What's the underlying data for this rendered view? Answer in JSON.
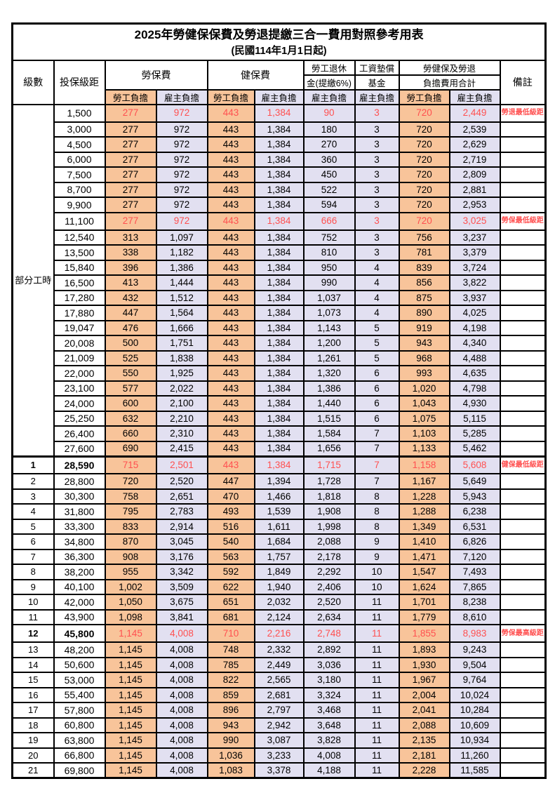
{
  "title": "2025年勞健保保費及勞退提繳三合一費用對照參考用表",
  "subtitle": "(民國114年1月1日起)",
  "part_time_label": "部分工時",
  "header": {
    "level": "級數",
    "bracket": "投保級距",
    "labor_fee": "勞保費",
    "health_fee": "健保費",
    "pension_line1": "勞工退休",
    "pension_line2": "金(提繳6%)",
    "wage_fund_line1": "工資墊償",
    "wage_fund_line2": "基金",
    "total_line1": "勞健保及勞退",
    "total_line2": "負擔費用合計",
    "employee": "勞工負擔",
    "employer": "雇主負擔",
    "note": "備註"
  },
  "colors": {
    "employee_bg": "#F8C49A",
    "employer_bg": "#E2E0F1",
    "highlight_text": "#FF5050",
    "border": "#000000"
  },
  "rows": [
    {
      "level": "",
      "bracket": "1,500",
      "v": [
        "277",
        "972",
        "443",
        "1,384",
        "90",
        "3",
        "720",
        "2,449"
      ],
      "note": "勞退最低級距",
      "hl": true
    },
    {
      "level": "",
      "bracket": "3,000",
      "v": [
        "277",
        "972",
        "443",
        "1,384",
        "180",
        "3",
        "720",
        "2,539"
      ]
    },
    {
      "level": "",
      "bracket": "4,500",
      "v": [
        "277",
        "972",
        "443",
        "1,384",
        "270",
        "3",
        "720",
        "2,629"
      ]
    },
    {
      "level": "",
      "bracket": "6,000",
      "v": [
        "277",
        "972",
        "443",
        "1,384",
        "360",
        "3",
        "720",
        "2,719"
      ]
    },
    {
      "level": "",
      "bracket": "7,500",
      "v": [
        "277",
        "972",
        "443",
        "1,384",
        "450",
        "3",
        "720",
        "2,809"
      ]
    },
    {
      "level": "",
      "bracket": "8,700",
      "v": [
        "277",
        "972",
        "443",
        "1,384",
        "522",
        "3",
        "720",
        "2,881"
      ]
    },
    {
      "level": "",
      "bracket": "9,900",
      "v": [
        "277",
        "972",
        "443",
        "1,384",
        "594",
        "3",
        "720",
        "2,953"
      ]
    },
    {
      "level": "",
      "bracket": "11,100",
      "v": [
        "277",
        "972",
        "443",
        "1,384",
        "666",
        "3",
        "720",
        "3,025"
      ],
      "note": "勞保最低級距",
      "hl": true
    },
    {
      "level": "",
      "bracket": "12,540",
      "v": [
        "313",
        "1,097",
        "443",
        "1,384",
        "752",
        "3",
        "756",
        "3,237"
      ]
    },
    {
      "level": "",
      "bracket": "13,500",
      "v": [
        "338",
        "1,182",
        "443",
        "1,384",
        "810",
        "3",
        "781",
        "3,379"
      ]
    },
    {
      "level": "",
      "bracket": "15,840",
      "v": [
        "396",
        "1,386",
        "443",
        "1,384",
        "950",
        "4",
        "839",
        "3,724"
      ]
    },
    {
      "level": "",
      "bracket": "16,500",
      "v": [
        "413",
        "1,444",
        "443",
        "1,384",
        "990",
        "4",
        "856",
        "3,822"
      ]
    },
    {
      "level": "",
      "bracket": "17,280",
      "v": [
        "432",
        "1,512",
        "443",
        "1,384",
        "1,037",
        "4",
        "875",
        "3,937"
      ]
    },
    {
      "level": "",
      "bracket": "17,880",
      "v": [
        "447",
        "1,564",
        "443",
        "1,384",
        "1,073",
        "4",
        "890",
        "4,025"
      ]
    },
    {
      "level": "",
      "bracket": "19,047",
      "v": [
        "476",
        "1,666",
        "443",
        "1,384",
        "1,143",
        "5",
        "919",
        "4,198"
      ]
    },
    {
      "level": "",
      "bracket": "20,008",
      "v": [
        "500",
        "1,751",
        "443",
        "1,384",
        "1,200",
        "5",
        "943",
        "4,340"
      ]
    },
    {
      "level": "",
      "bracket": "21,009",
      "v": [
        "525",
        "1,838",
        "443",
        "1,384",
        "1,261",
        "5",
        "968",
        "4,488"
      ]
    },
    {
      "level": "",
      "bracket": "22,000",
      "v": [
        "550",
        "1,925",
        "443",
        "1,384",
        "1,320",
        "6",
        "993",
        "4,635"
      ]
    },
    {
      "level": "",
      "bracket": "23,100",
      "v": [
        "577",
        "2,022",
        "443",
        "1,384",
        "1,386",
        "6",
        "1,020",
        "4,798"
      ]
    },
    {
      "level": "",
      "bracket": "24,000",
      "v": [
        "600",
        "2,100",
        "443",
        "1,384",
        "1,440",
        "6",
        "1,043",
        "4,930"
      ]
    },
    {
      "level": "",
      "bracket": "25,250",
      "v": [
        "632",
        "2,210",
        "443",
        "1,384",
        "1,515",
        "6",
        "1,075",
        "5,115"
      ]
    },
    {
      "level": "",
      "bracket": "26,400",
      "v": [
        "660",
        "2,310",
        "443",
        "1,384",
        "1,584",
        "7",
        "1,103",
        "5,285"
      ]
    },
    {
      "level": "",
      "bracket": "27,600",
      "v": [
        "690",
        "2,415",
        "443",
        "1,384",
        "1,656",
        "7",
        "1,133",
        "5,462"
      ]
    },
    {
      "level": "1",
      "bracket": "28,590",
      "v": [
        "715",
        "2,501",
        "443",
        "1,384",
        "1,715",
        "7",
        "1,158",
        "5,608"
      ],
      "note": "健保最低級距",
      "hl": true,
      "bold": true,
      "sep": true
    },
    {
      "level": "2",
      "bracket": "28,800",
      "v": [
        "720",
        "2,520",
        "447",
        "1,394",
        "1,728",
        "7",
        "1,167",
        "5,649"
      ]
    },
    {
      "level": "3",
      "bracket": "30,300",
      "v": [
        "758",
        "2,651",
        "470",
        "1,466",
        "1,818",
        "8",
        "1,228",
        "5,943"
      ]
    },
    {
      "level": "4",
      "bracket": "31,800",
      "v": [
        "795",
        "2,783",
        "493",
        "1,539",
        "1,908",
        "8",
        "1,288",
        "6,238"
      ]
    },
    {
      "level": "5",
      "bracket": "33,300",
      "v": [
        "833",
        "2,914",
        "516",
        "1,611",
        "1,998",
        "8",
        "1,349",
        "6,531"
      ]
    },
    {
      "level": "6",
      "bracket": "34,800",
      "v": [
        "870",
        "3,045",
        "540",
        "1,684",
        "2,088",
        "9",
        "1,410",
        "6,826"
      ]
    },
    {
      "level": "7",
      "bracket": "36,300",
      "v": [
        "908",
        "3,176",
        "563",
        "1,757",
        "2,178",
        "9",
        "1,471",
        "7,120"
      ]
    },
    {
      "level": "8",
      "bracket": "38,200",
      "v": [
        "955",
        "3,342",
        "592",
        "1,849",
        "2,292",
        "10",
        "1,547",
        "7,493"
      ]
    },
    {
      "level": "9",
      "bracket": "40,100",
      "v": [
        "1,002",
        "3,509",
        "622",
        "1,940",
        "2,406",
        "10",
        "1,624",
        "7,865"
      ]
    },
    {
      "level": "10",
      "bracket": "42,000",
      "v": [
        "1,050",
        "3,675",
        "651",
        "2,032",
        "2,520",
        "11",
        "1,701",
        "8,238"
      ]
    },
    {
      "level": "11",
      "bracket": "43,900",
      "v": [
        "1,098",
        "3,841",
        "681",
        "2,124",
        "2,634",
        "11",
        "1,779",
        "8,610"
      ]
    },
    {
      "level": "12",
      "bracket": "45,800",
      "v": [
        "1,145",
        "4,008",
        "710",
        "2,216",
        "2,748",
        "11",
        "1,855",
        "8,983"
      ],
      "note": "勞保最高級距",
      "hl": true,
      "bold": true
    },
    {
      "level": "13",
      "bracket": "48,200",
      "v": [
        "1,145",
        "4,008",
        "748",
        "2,332",
        "2,892",
        "11",
        "1,893",
        "9,243"
      ]
    },
    {
      "level": "14",
      "bracket": "50,600",
      "v": [
        "1,145",
        "4,008",
        "785",
        "2,449",
        "3,036",
        "11",
        "1,930",
        "9,504"
      ]
    },
    {
      "level": "15",
      "bracket": "53,000",
      "v": [
        "1,145",
        "4,008",
        "822",
        "2,565",
        "3,180",
        "11",
        "1,967",
        "9,764"
      ]
    },
    {
      "level": "16",
      "bracket": "55,400",
      "v": [
        "1,145",
        "4,008",
        "859",
        "2,681",
        "3,324",
        "11",
        "2,004",
        "10,024"
      ]
    },
    {
      "level": "17",
      "bracket": "57,800",
      "v": [
        "1,145",
        "4,008",
        "896",
        "2,797",
        "3,468",
        "11",
        "2,041",
        "10,284"
      ]
    },
    {
      "level": "18",
      "bracket": "60,800",
      "v": [
        "1,145",
        "4,008",
        "943",
        "2,942",
        "3,648",
        "11",
        "2,088",
        "10,609"
      ]
    },
    {
      "level": "19",
      "bracket": "63,800",
      "v": [
        "1,145",
        "4,008",
        "990",
        "3,087",
        "3,828",
        "11",
        "2,135",
        "10,934"
      ]
    },
    {
      "level": "20",
      "bracket": "66,800",
      "v": [
        "1,145",
        "4,008",
        "1,036",
        "3,233",
        "4,008",
        "11",
        "2,181",
        "11,260"
      ]
    },
    {
      "level": "21",
      "bracket": "69,800",
      "v": [
        "1,145",
        "4,008",
        "1,083",
        "3,378",
        "4,188",
        "11",
        "2,228",
        "11,585"
      ]
    }
  ]
}
